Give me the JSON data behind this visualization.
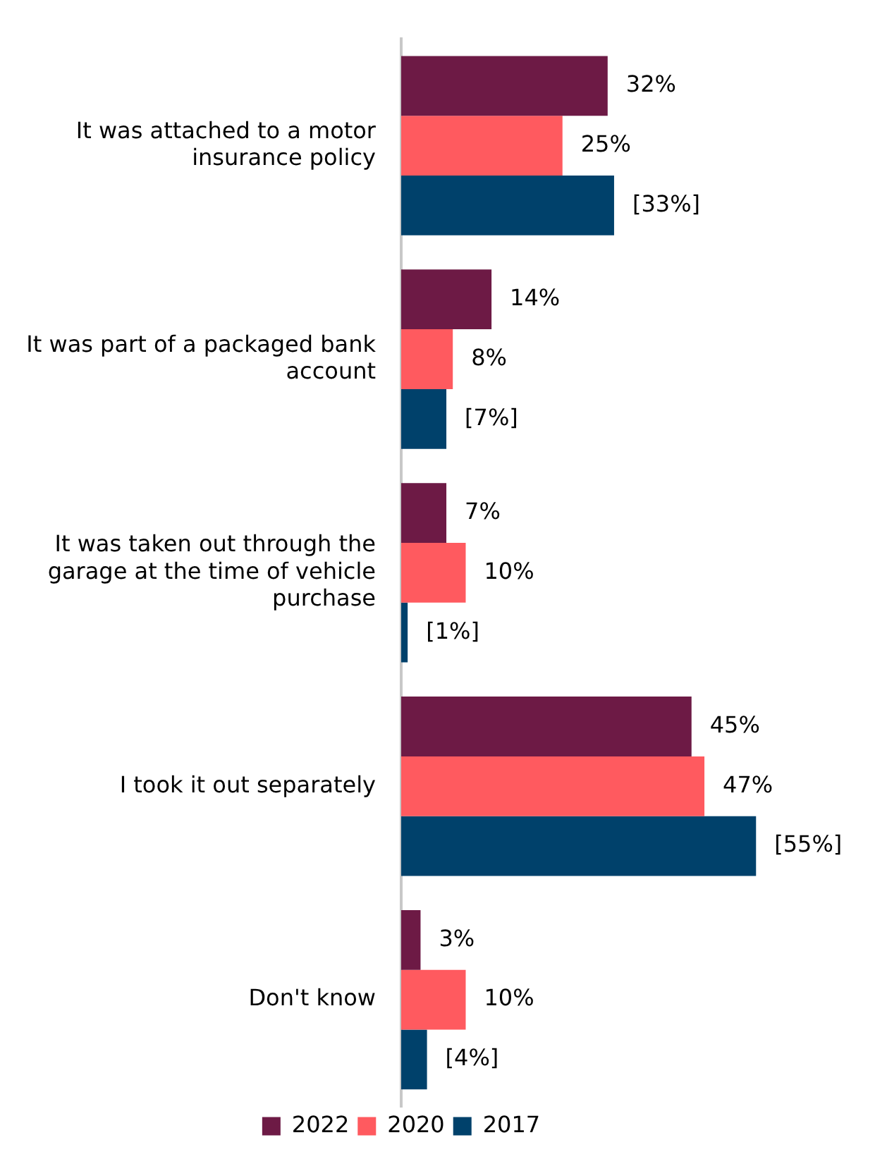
{
  "chart_data": {
    "type": "bar",
    "orientation": "horizontal",
    "categories": [
      "It was attached to a motor insurance policy",
      "It was part of a packaged bank account",
      "It was taken out through the garage at the time of vehicle purchase",
      "I took it out separately",
      "Don't know"
    ],
    "series": [
      {
        "name": "2022",
        "color": "#6d1a45",
        "values": [
          32,
          14,
          7,
          45,
          3
        ],
        "value_labels": [
          "32%",
          "14%",
          "7%",
          "45%",
          "3%"
        ]
      },
      {
        "name": "2020",
        "color": "#ff5a5f",
        "values": [
          25,
          8,
          10,
          47,
          10
        ],
        "value_labels": [
          "25%",
          "8%",
          "10%",
          "47%",
          "10%"
        ]
      },
      {
        "name": "2017",
        "color": "#00416b",
        "values": [
          33,
          7,
          1,
          55,
          4
        ],
        "value_labels": [
          "[33%]",
          "[7%]",
          "[1%]",
          "[55%]",
          "[4%]"
        ]
      }
    ],
    "grid": false,
    "legend": "bottom",
    "tick_labels": "y"
  }
}
